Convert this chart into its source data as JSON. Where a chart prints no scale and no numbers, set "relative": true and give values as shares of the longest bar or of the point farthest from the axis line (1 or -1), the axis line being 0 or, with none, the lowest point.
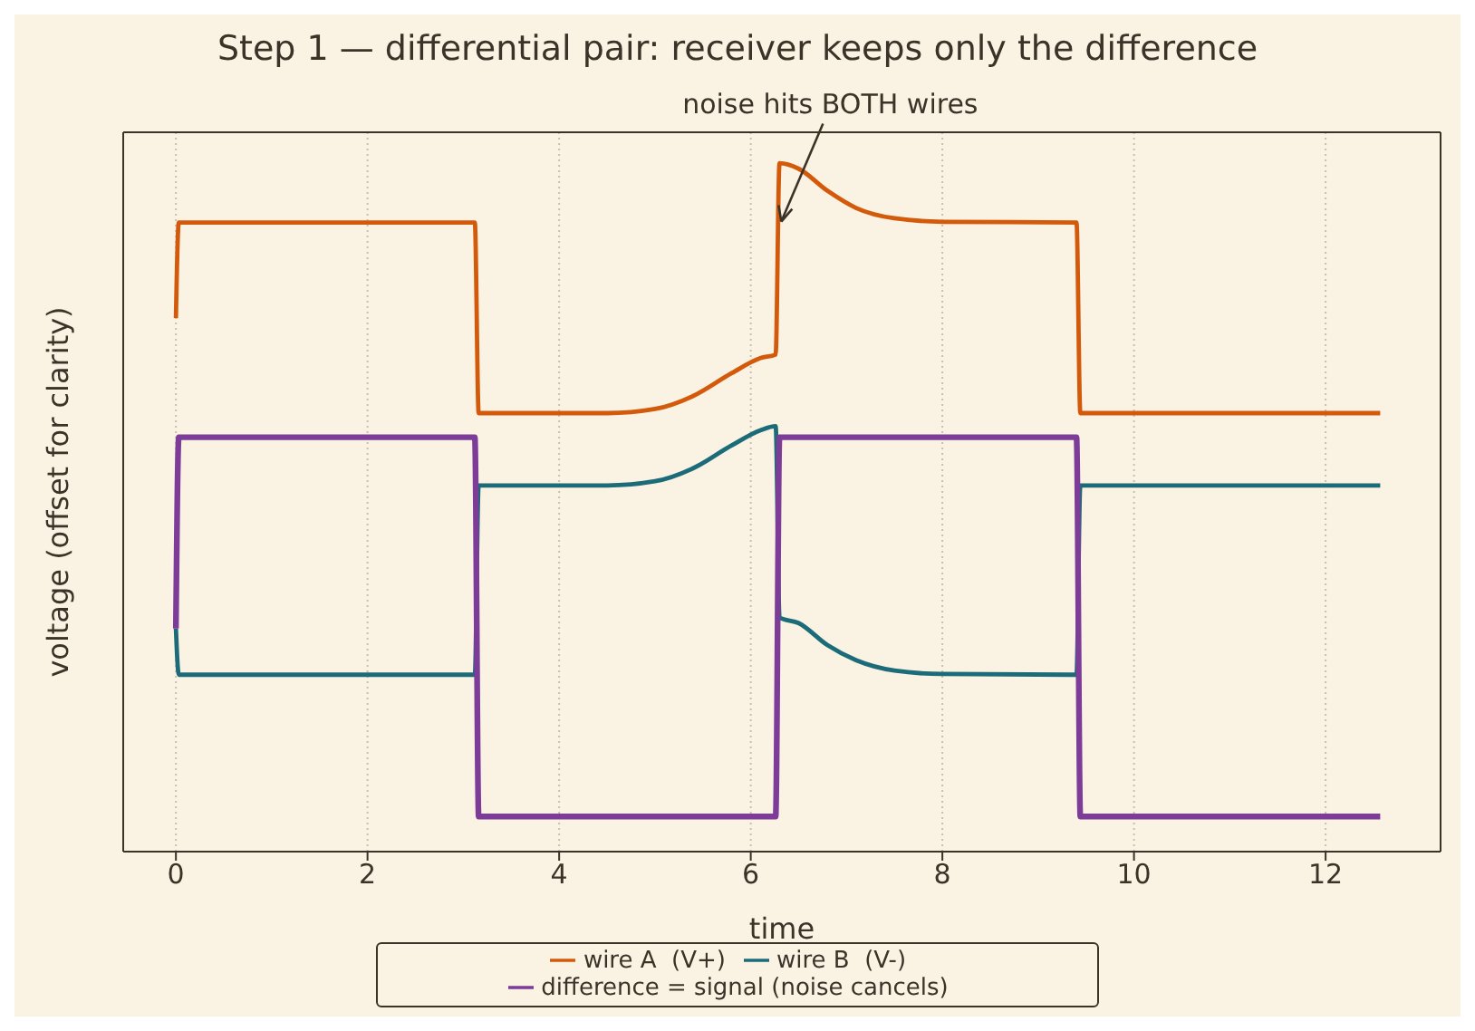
{
  "chart_data": {
    "type": "line",
    "title": "Step 1 — differential pair: receiver keeps only the difference",
    "xlabel": "time",
    "ylabel": "voltage (offset for clarity)",
    "relative": true,
    "xlim": [
      -0.55,
      13.2
    ],
    "xticks": [
      0,
      2,
      4,
      6,
      8,
      10,
      12
    ],
    "grid": "x",
    "legend": "bottom",
    "marker": "none",
    "line_style": "solid",
    "annotations": [
      {
        "text": "noise hits BOTH wires",
        "x": 6.3,
        "y": 0.91
      }
    ],
    "series": [
      {
        "name": "wire A  (V+)",
        "color": "#d35a0b",
        "x": [
          0,
          0.03,
          3.12,
          3.16,
          4.5,
          5.0,
          5.4,
          5.8,
          6.1,
          6.26,
          6.3,
          6.5,
          6.8,
          7.1,
          7.5,
          8.0,
          9.4,
          9.44,
          12.57
        ],
        "values": [
          0.775,
          0.914,
          0.914,
          0.637,
          0.637,
          0.643,
          0.662,
          0.695,
          0.717,
          0.722,
          1.0,
          0.992,
          0.96,
          0.935,
          0.92,
          0.915,
          0.914,
          0.637,
          0.637
        ]
      },
      {
        "name": "wire B  (V-)",
        "color": "#1c6b78",
        "x": [
          0,
          0.03,
          3.12,
          3.16,
          4.5,
          5.0,
          5.4,
          5.8,
          6.1,
          6.26,
          6.3,
          6.5,
          6.8,
          7.1,
          7.5,
          8.0,
          9.4,
          9.44,
          12.57
        ],
        "values": [
          0.324,
          0.257,
          0.257,
          0.532,
          0.532,
          0.538,
          0.557,
          0.59,
          0.612,
          0.618,
          0.34,
          0.332,
          0.3,
          0.278,
          0.263,
          0.258,
          0.257,
          0.532,
          0.532
        ]
      },
      {
        "name": "difference = signal (noise cancels)",
        "color": "#7d3c98",
        "x": [
          0,
          0.03,
          3.12,
          3.16,
          6.26,
          6.3,
          9.4,
          9.44,
          12.57
        ],
        "values": [
          0.324,
          0.602,
          0.602,
          0.051,
          0.051,
          0.602,
          0.602,
          0.051,
          0.051
        ]
      }
    ]
  }
}
